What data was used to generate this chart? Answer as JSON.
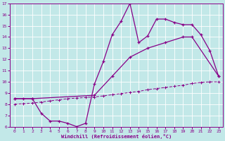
{
  "xlabel": "Windchill (Refroidissement éolien,°C)",
  "xlim": [
    -0.5,
    23.5
  ],
  "ylim": [
    6,
    17
  ],
  "xticks": [
    0,
    1,
    2,
    3,
    4,
    5,
    6,
    7,
    8,
    9,
    10,
    11,
    12,
    13,
    14,
    15,
    16,
    17,
    18,
    19,
    20,
    21,
    22,
    23
  ],
  "yticks": [
    6,
    7,
    8,
    9,
    10,
    11,
    12,
    13,
    14,
    15,
    16,
    17
  ],
  "bg_color": "#c2e8e8",
  "line_color": "#880088",
  "curve1_x": [
    0,
    1,
    2,
    3,
    4,
    5,
    6,
    7,
    8,
    9,
    10,
    11,
    12,
    13,
    14,
    15,
    16,
    17,
    18,
    19,
    20,
    21,
    22,
    23
  ],
  "curve1_y": [
    8.5,
    8.5,
    8.5,
    7.2,
    6.5,
    6.5,
    6.3,
    6.0,
    6.3,
    9.8,
    11.8,
    14.2,
    15.4,
    17.0,
    13.5,
    14.1,
    15.6,
    15.6,
    15.3,
    15.1,
    15.1,
    14.2,
    12.8,
    10.5
  ],
  "curve2_x": [
    0,
    2,
    9,
    11,
    13,
    15,
    17,
    19,
    20,
    23
  ],
  "curve2_y": [
    8.5,
    8.5,
    8.8,
    10.5,
    12.2,
    13.0,
    13.5,
    14.0,
    14.0,
    10.5
  ],
  "curve3_x": [
    0,
    1,
    2,
    3,
    4,
    5,
    6,
    7,
    8,
    9,
    10,
    11,
    12,
    13,
    14,
    15,
    16,
    17,
    18,
    19,
    20,
    21,
    22,
    23
  ],
  "curve3_y": [
    8.0,
    8.05,
    8.1,
    8.2,
    8.3,
    8.4,
    8.5,
    8.55,
    8.6,
    8.65,
    8.75,
    8.85,
    8.95,
    9.05,
    9.15,
    9.3,
    9.4,
    9.5,
    9.6,
    9.7,
    9.85,
    9.95,
    10.0,
    10.0
  ]
}
